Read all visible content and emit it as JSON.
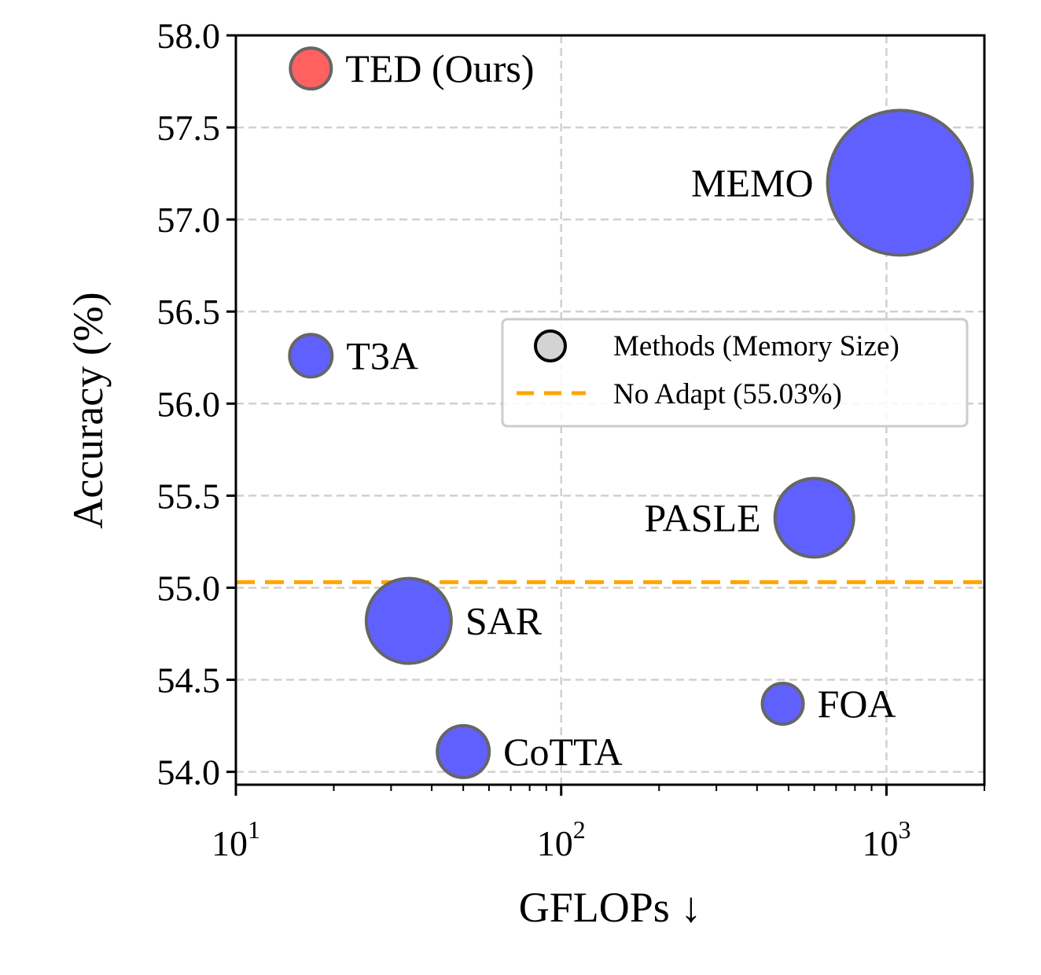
{
  "chart_data": {
    "type": "scatter",
    "title": "",
    "xlabel": "GFLOPs ↓",
    "ylabel": "Accuracy (%)",
    "xscale": "log",
    "xlim": [
      10,
      2000
    ],
    "ylim": [
      53.93,
      58.0
    ],
    "grid": true,
    "x_ticks": [
      {
        "value": 10,
        "base": "10",
        "exp": "1"
      },
      {
        "value": 100,
        "base": "10",
        "exp": "2"
      },
      {
        "value": 1000,
        "base": "10",
        "exp": "3"
      }
    ],
    "y_ticks": [
      {
        "value": 54.0,
        "label": "54.0"
      },
      {
        "value": 54.5,
        "label": "54.5"
      },
      {
        "value": 55.0,
        "label": "55.0"
      },
      {
        "value": 55.5,
        "label": "55.5"
      },
      {
        "value": 56.0,
        "label": "56.0"
      },
      {
        "value": 56.5,
        "label": "56.5"
      },
      {
        "value": 57.0,
        "label": "57.0"
      },
      {
        "value": 57.5,
        "label": "57.5"
      },
      {
        "value": 58.0,
        "label": "58.0"
      }
    ],
    "series": [
      {
        "name": "Methods (Memory Size)",
        "points": [
          {
            "label": "TED (Ours)",
            "x": 17,
            "y": 57.82,
            "size_rel": 26,
            "color": "#ff6060",
            "label_side": "right"
          },
          {
            "label": "MEMO",
            "x": 1100,
            "y": 57.2,
            "size_rel": 92,
            "color": "#6060ff",
            "label_side": "left"
          },
          {
            "label": "T3A",
            "x": 17,
            "y": 56.26,
            "size_rel": 27,
            "color": "#6060ff",
            "label_side": "right"
          },
          {
            "label": "PASLE",
            "x": 600,
            "y": 55.38,
            "size_rel": 50,
            "color": "#6060ff",
            "label_side": "left"
          },
          {
            "label": "SAR",
            "x": 34,
            "y": 54.82,
            "size_rel": 54,
            "color": "#6060ff",
            "label_side": "right"
          },
          {
            "label": "FOA",
            "x": 480,
            "y": 54.37,
            "size_rel": 26,
            "color": "#6060ff",
            "label_side": "right"
          },
          {
            "label": "CoTTA",
            "x": 50,
            "y": 54.11,
            "size_rel": 33,
            "color": "#6060ff",
            "label_side": "right"
          }
        ]
      }
    ],
    "reference_line": {
      "name": "No Adapt (55.03%)",
      "y": 55.03,
      "color": "#ffa500",
      "style": "dashed"
    },
    "legend": {
      "position": "center-right",
      "entries": [
        {
          "label": "Methods (Memory Size)",
          "marker": "circle",
          "color": "#d3d3d3"
        },
        {
          "label": "No Adapt (55.03%)",
          "marker": "dashed-line",
          "color": "#ffa500"
        }
      ]
    },
    "colors": {
      "edge": "#666666",
      "grid": "#d0d0d0",
      "axis": "#000000"
    }
  }
}
